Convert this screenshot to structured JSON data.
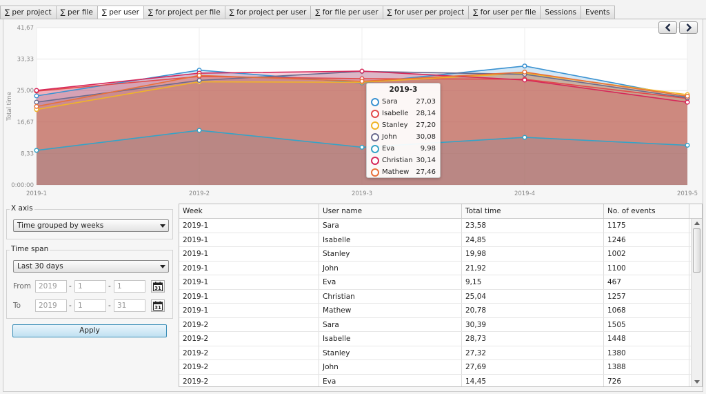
{
  "tabs": [
    {
      "label": "∑ per project"
    },
    {
      "label": "∑ per file"
    },
    {
      "label": "∑ per user",
      "active": true
    },
    {
      "label": "∑ for project per file"
    },
    {
      "label": "∑ for project per user"
    },
    {
      "label": "∑ for file per user"
    },
    {
      "label": "∑ for user per project"
    },
    {
      "label": "∑ for user per file"
    },
    {
      "label": "Sessions"
    },
    {
      "label": "Events"
    }
  ],
  "nav": {
    "prev_icon": "chevron-left-icon",
    "next_icon": "chevron-right-icon"
  },
  "chart_data": {
    "type": "area",
    "ylabel": "Total time",
    "ylim": [
      0,
      41.67
    ],
    "yticks": [
      "0:00:00",
      "8,33",
      "16,67",
      "25,00",
      "33,33",
      "41,67"
    ],
    "x": [
      "2019-1",
      "2019-2",
      "2019-3",
      "2019-4",
      "2019-5"
    ],
    "series": [
      {
        "name": "Sara",
        "color": "#3a92d1",
        "values": [
          23.58,
          30.39,
          27.03,
          31.5,
          23.3
        ]
      },
      {
        "name": "Isabelle",
        "color": "#e24a4a",
        "values": [
          24.85,
          28.73,
          28.14,
          28.0,
          22.9
        ]
      },
      {
        "name": "Stanley",
        "color": "#f0b429",
        "values": [
          19.98,
          27.32,
          27.2,
          29.6,
          23.9
        ]
      },
      {
        "name": "John",
        "color": "#6b6b8e",
        "values": [
          21.92,
          27.69,
          30.08,
          29.3,
          23.1
        ]
      },
      {
        "name": "Eva",
        "color": "#35a3c7",
        "values": [
          9.15,
          14.45,
          9.98,
          12.6,
          10.5
        ]
      },
      {
        "name": "Christian",
        "color": "#d6285a",
        "values": [
          25.04,
          29.6,
          30.14,
          27.8,
          21.9
        ]
      },
      {
        "name": "Mathew",
        "color": "#e8703a",
        "values": [
          20.78,
          29.0,
          27.46,
          29.9,
          23.5
        ]
      }
    ],
    "tooltip": {
      "title": "2019-3",
      "rows": [
        {
          "name": "Sara",
          "value": "27,03",
          "color": "#3a92d1"
        },
        {
          "name": "Isabelle",
          "value": "28,14",
          "color": "#e24a4a"
        },
        {
          "name": "Stanley",
          "value": "27,20",
          "color": "#f0b429"
        },
        {
          "name": "John",
          "value": "30,08",
          "color": "#6b6b8e"
        },
        {
          "name": "Eva",
          "value": "9,98",
          "color": "#35a3c7"
        },
        {
          "name": "Christian",
          "value": "30,14",
          "color": "#d6285a"
        },
        {
          "name": "Mathew",
          "value": "27,46",
          "color": "#e8703a"
        }
      ]
    }
  },
  "xaxis_group": {
    "title": "X axis",
    "selected": "Time grouped by weeks"
  },
  "timespan_group": {
    "title": "Time span",
    "selected": "Last 30 days",
    "from_label": "From",
    "to_label": "To",
    "from": {
      "year": "2019",
      "month": "1",
      "day": "1"
    },
    "to": {
      "year": "2019",
      "month": "1",
      "day": "31"
    },
    "calendar_icon": "calendar-icon",
    "calendar_day": "31"
  },
  "apply_label": "Apply",
  "table": {
    "columns": [
      "Week",
      "User name",
      "Total time",
      "No. of events"
    ],
    "rows": [
      [
        "2019-1",
        "Sara",
        "23,58",
        "1175"
      ],
      [
        "2019-1",
        "Isabelle",
        "24,85",
        "1246"
      ],
      [
        "2019-1",
        "Stanley",
        "19,98",
        "1002"
      ],
      [
        "2019-1",
        "John",
        "21,92",
        "1100"
      ],
      [
        "2019-1",
        "Eva",
        "9,15",
        "467"
      ],
      [
        "2019-1",
        "Christian",
        "25,04",
        "1257"
      ],
      [
        "2019-1",
        "Mathew",
        "20,78",
        "1068"
      ],
      [
        "2019-2",
        "Sara",
        "30,39",
        "1505"
      ],
      [
        "2019-2",
        "Isabelle",
        "28,73",
        "1448"
      ],
      [
        "2019-2",
        "Stanley",
        "27,32",
        "1380"
      ],
      [
        "2019-2",
        "John",
        "27,69",
        "1388"
      ],
      [
        "2019-2",
        "Eva",
        "14,45",
        "726"
      ]
    ]
  }
}
